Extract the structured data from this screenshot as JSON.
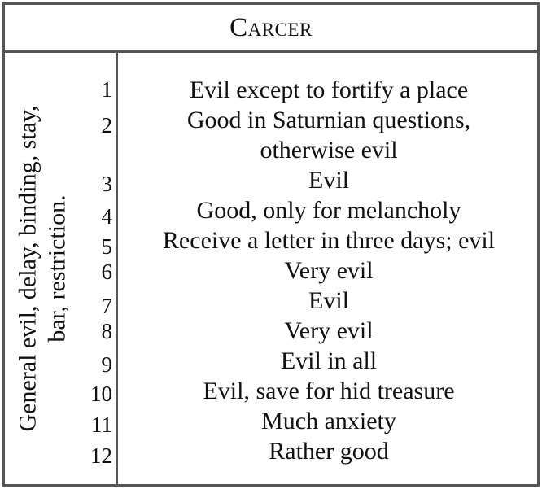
{
  "table": {
    "title": "Carcer",
    "side_label_line1": "General evil, delay, binding, stay,",
    "side_label_line2": "bar, restriction.",
    "rows": [
      {
        "num": "1",
        "text": "Evil except to fortify a place"
      },
      {
        "num": "2",
        "text": "Good in Saturnian questions,",
        "text2": "otherwise evil"
      },
      {
        "num": "3",
        "text": "Evil"
      },
      {
        "num": "4",
        "text": "Good, only for melancholy"
      },
      {
        "num": "5",
        "text": "Receive a letter in three days; evil"
      },
      {
        "num": "6",
        "text": "Very evil"
      },
      {
        "num": "7",
        "text": "Evil"
      },
      {
        "num": "8",
        "text": "Very evil"
      },
      {
        "num": "9",
        "text": "Evil in all"
      },
      {
        "num": "10",
        "text": "Evil, save for hid treasure"
      },
      {
        "num": "11",
        "text": "Much anxiety"
      },
      {
        "num": "12",
        "text": "Rather good"
      }
    ]
  }
}
